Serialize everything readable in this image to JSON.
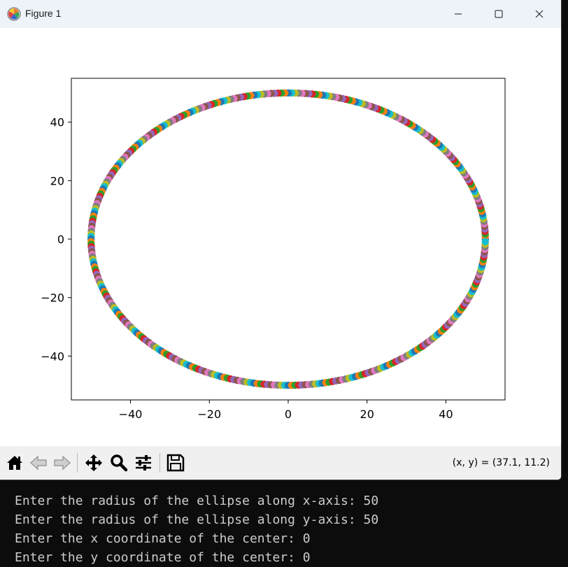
{
  "window": {
    "title": "Figure 1",
    "icon": "matplotlib-logo-icon",
    "controls": [
      "minimize-icon",
      "maximize-icon",
      "close-icon"
    ]
  },
  "toolbar": {
    "tools": [
      "home-icon",
      "back-arrow-icon",
      "forward-arrow-icon",
      "pan-move-icon",
      "zoom-magnifier-icon",
      "configure-subplots-icon",
      "save-floppy-icon"
    ],
    "coord_readout": "(x, y) = (37.1, 11.2)"
  },
  "chart_data": {
    "type": "scatter",
    "title": "",
    "xlabel": "",
    "ylabel": "",
    "xlim": [
      -55,
      55
    ],
    "ylim": [
      -55,
      55
    ],
    "xticks": [
      -40,
      -20,
      0,
      20,
      40
    ],
    "yticks": [
      -40,
      -20,
      0,
      20,
      40
    ],
    "xtick_labels": [
      "−40",
      "−20",
      "0",
      "20",
      "40"
    ],
    "ytick_labels": [
      "−40",
      "−20",
      "0",
      "20",
      "40"
    ],
    "grid": false,
    "shape": "ellipse outline",
    "center": [
      0,
      0
    ],
    "radius_x": 50,
    "radius_y": 50,
    "point_count": 360,
    "colors": [
      "#1f77b4",
      "#ff7f0e",
      "#2ca02c",
      "#d62728",
      "#9467bd",
      "#8c564b",
      "#e377c2",
      "#7f7f7f",
      "#bcbd22",
      "#17becf"
    ]
  },
  "terminal": {
    "lines": [
      "Enter the radius of the ellipse along x-axis: 50",
      "Enter the radius of the ellipse along y-axis: 50",
      "Enter the x coordinate of the center: 0",
      "Enter the y coordinate of the center: 0"
    ]
  }
}
